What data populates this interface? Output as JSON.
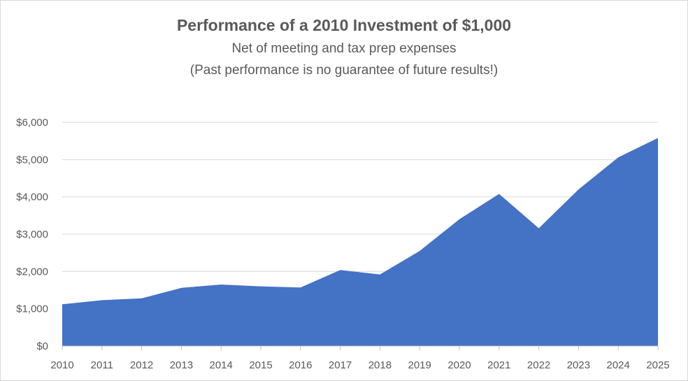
{
  "chart_data": {
    "type": "area",
    "title": "Performance of a 2010 Investment of $1,000",
    "subtitle": "Net of meeting and tax prep expenses",
    "note": "(Past performance is no guarantee of future results!)",
    "xlabel": "",
    "ylabel": "",
    "x": [
      "2010",
      "2011",
      "2012",
      "2013",
      "2014",
      "2015",
      "2016",
      "2017",
      "2018",
      "2019",
      "2020",
      "2021",
      "2022",
      "2023",
      "2024",
      "2025"
    ],
    "series": [
      {
        "values": [
          1120,
          1230,
          1280,
          1560,
          1650,
          1600,
          1570,
          2040,
          1920,
          2550,
          3400,
          4080,
          3160,
          4200,
          5060,
          5580
        ]
      }
    ],
    "ylim": [
      0,
      6000
    ],
    "y_ticks": [
      0,
      1000,
      2000,
      3000,
      4000,
      5000,
      6000
    ],
    "y_tick_labels": [
      "$0",
      "$1,000",
      "$2,000",
      "$3,000",
      "$4,000",
      "$5,000",
      "$6,000"
    ],
    "grid": true,
    "legend": "none",
    "fill_color": "#4472c4",
    "grid_color": "#d9d9d9",
    "axis_color": "#bfbfbf",
    "text_color": "#595959"
  }
}
